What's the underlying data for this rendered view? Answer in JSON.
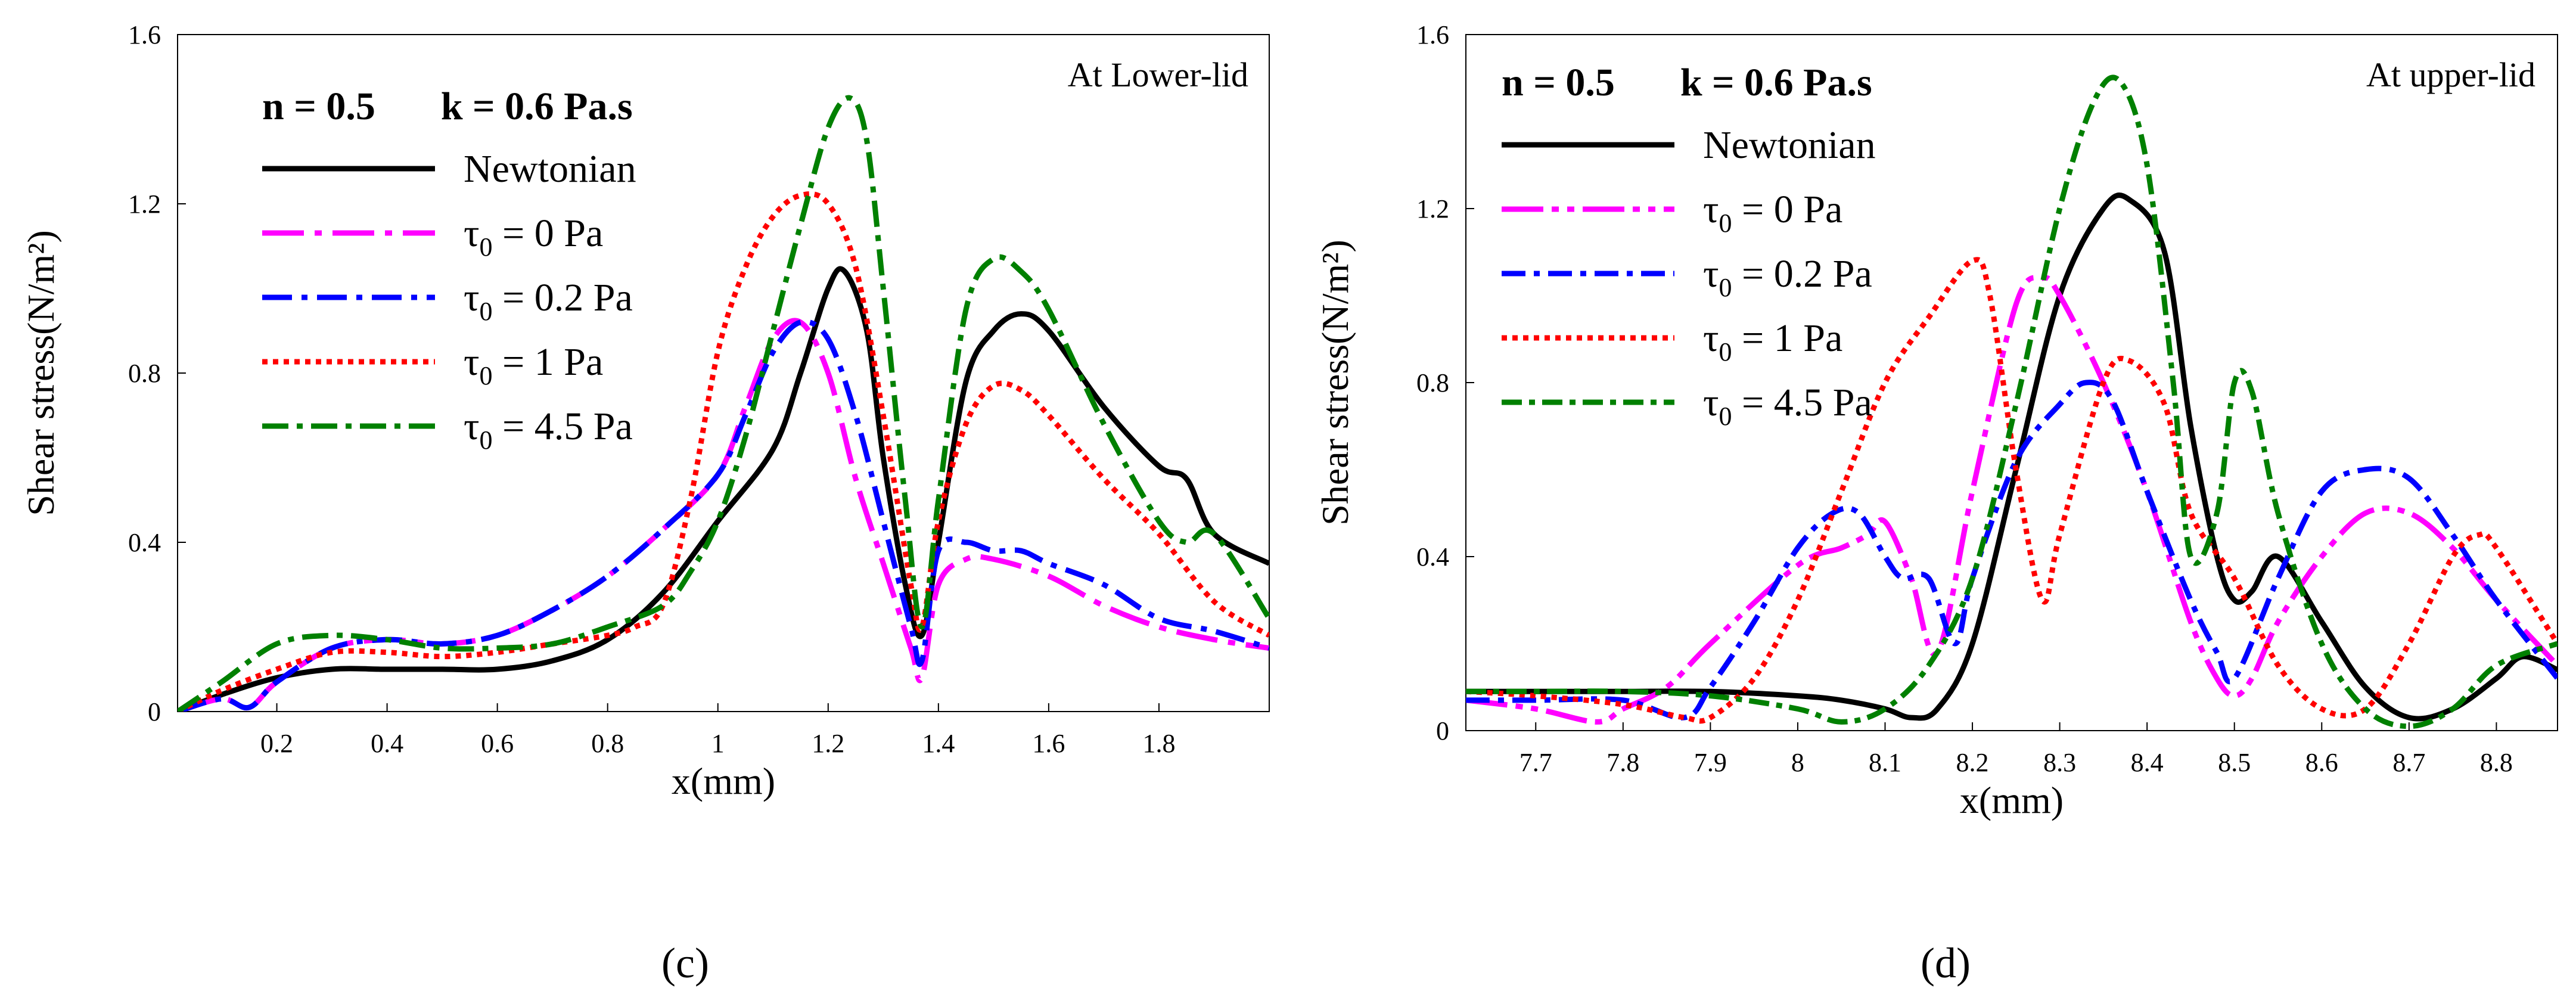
{
  "chart_data": [
    {
      "type": "line",
      "panel_label": "(c)",
      "annotation": "At Lower-lid",
      "params": {
        "n": "n = 0.5",
        "k": "k = 0.6 Pa.s"
      },
      "xlabel": "x(mm)",
      "ylabel": "Shear stress(N/m²)",
      "xlim": [
        0.02,
        2.0
      ],
      "ylim": [
        0,
        1.6
      ],
      "xticks": [
        0.2,
        0.4,
        0.6,
        0.8,
        1,
        1.2,
        1.4,
        1.6,
        1.8
      ],
      "xtick_labels": [
        "0.2",
        "0.4",
        "0.6",
        "0.8",
        "1",
        "1.2",
        "1.4",
        "1.6",
        "1.8"
      ],
      "yticks": [
        0,
        0.4,
        0.8,
        1.2,
        1.6
      ],
      "ytick_labels": [
        "0",
        "0.4",
        "0.8",
        "1.2",
        "1.6"
      ],
      "legend_position": "top-left",
      "series": [
        {
          "name": "Newtonian",
          "sub": "",
          "rest": "",
          "color": "#000000",
          "dash": "",
          "x": [
            0.02,
            0.1,
            0.2,
            0.3,
            0.4,
            0.5,
            0.6,
            0.7,
            0.8,
            0.9,
            1.0,
            1.1,
            1.15,
            1.2,
            1.23,
            1.27,
            1.3,
            1.34,
            1.37,
            1.4,
            1.45,
            1.5,
            1.55,
            1.6,
            1.7,
            1.8,
            1.85,
            1.9,
            2.0
          ],
          "y": [
            0.0,
            0.04,
            0.08,
            0.1,
            0.1,
            0.1,
            0.1,
            0.12,
            0.17,
            0.28,
            0.45,
            0.62,
            0.8,
            1.0,
            1.04,
            0.9,
            0.6,
            0.3,
            0.18,
            0.4,
            0.78,
            0.9,
            0.94,
            0.9,
            0.72,
            0.58,
            0.55,
            0.42,
            0.35
          ]
        },
        {
          "name": "τ",
          "sub": "0",
          "rest": " = 0 Pa",
          "color": "#ff00ff",
          "dash": "70,18,12,18",
          "x": [
            0.02,
            0.1,
            0.15,
            0.2,
            0.3,
            0.4,
            0.5,
            0.6,
            0.7,
            0.8,
            0.9,
            1.0,
            1.05,
            1.1,
            1.15,
            1.2,
            1.25,
            1.3,
            1.35,
            1.37,
            1.4,
            1.45,
            1.5,
            1.6,
            1.7,
            1.8,
            1.9,
            2.0
          ],
          "y": [
            0.0,
            0.03,
            0.01,
            0.07,
            0.15,
            0.17,
            0.16,
            0.18,
            0.24,
            0.32,
            0.43,
            0.56,
            0.72,
            0.88,
            0.92,
            0.8,
            0.55,
            0.35,
            0.15,
            0.08,
            0.3,
            0.36,
            0.36,
            0.32,
            0.25,
            0.2,
            0.17,
            0.15
          ]
        },
        {
          "name": "τ",
          "sub": "0",
          "rest": " = 0.2 Pa",
          "color": "#0000ff",
          "dash": "50,16,10,16",
          "x": [
            0.02,
            0.1,
            0.15,
            0.2,
            0.3,
            0.4,
            0.5,
            0.6,
            0.7,
            0.8,
            0.9,
            1.0,
            1.05,
            1.1,
            1.15,
            1.2,
            1.25,
            1.3,
            1.35,
            1.37,
            1.4,
            1.45,
            1.5,
            1.55,
            1.6,
            1.7,
            1.8,
            1.9,
            2.0
          ],
          "y": [
            0.0,
            0.03,
            0.01,
            0.07,
            0.15,
            0.17,
            0.16,
            0.18,
            0.24,
            0.32,
            0.43,
            0.56,
            0.7,
            0.85,
            0.92,
            0.88,
            0.7,
            0.45,
            0.2,
            0.12,
            0.38,
            0.4,
            0.38,
            0.38,
            0.35,
            0.3,
            0.22,
            0.19,
            0.15
          ]
        },
        {
          "name": "τ",
          "sub": "0",
          "rest": " = 1 Pa",
          "color": "#ff0000",
          "dash": "9,9",
          "x": [
            0.02,
            0.1,
            0.2,
            0.3,
            0.4,
            0.5,
            0.6,
            0.7,
            0.8,
            0.85,
            0.9,
            0.95,
            1.0,
            1.05,
            1.1,
            1.15,
            1.2,
            1.25,
            1.3,
            1.35,
            1.37,
            1.4,
            1.45,
            1.5,
            1.55,
            1.6,
            1.7,
            1.8,
            1.9,
            2.0
          ],
          "y": [
            0.0,
            0.05,
            0.1,
            0.14,
            0.14,
            0.13,
            0.14,
            0.16,
            0.18,
            0.2,
            0.25,
            0.5,
            0.85,
            1.05,
            1.17,
            1.22,
            1.2,
            1.05,
            0.7,
            0.3,
            0.2,
            0.45,
            0.68,
            0.77,
            0.76,
            0.7,
            0.55,
            0.42,
            0.26,
            0.18
          ]
        },
        {
          "name": "τ",
          "sub": "0",
          "rest": " = 4.5 Pa",
          "color": "#008000",
          "dash": "44,14,10,14",
          "x": [
            0.02,
            0.1,
            0.2,
            0.3,
            0.4,
            0.5,
            0.6,
            0.7,
            0.8,
            0.9,
            0.95,
            1.0,
            1.05,
            1.1,
            1.15,
            1.2,
            1.24,
            1.27,
            1.3,
            1.34,
            1.37,
            1.4,
            1.45,
            1.5,
            1.55,
            1.6,
            1.7,
            1.8,
            1.85,
            1.9,
            2.0
          ],
          "y": [
            0.0,
            0.07,
            0.16,
            0.18,
            0.17,
            0.15,
            0.15,
            0.16,
            0.2,
            0.25,
            0.33,
            0.45,
            0.65,
            0.9,
            1.15,
            1.38,
            1.45,
            1.35,
            1.0,
            0.5,
            0.2,
            0.5,
            0.95,
            1.07,
            1.04,
            0.95,
            0.68,
            0.45,
            0.4,
            0.42,
            0.22
          ]
        }
      ]
    },
    {
      "type": "line",
      "panel_label": "(d)",
      "annotation": "At upper-lid",
      "params": {
        "n": "n = 0.5",
        "k": "k = 0.6 Pa.s"
      },
      "xlabel": "x(mm)",
      "ylabel": "Shear stress(N/m²)",
      "xlim": [
        7.62,
        8.87
      ],
      "ylim": [
        0,
        1.6
      ],
      "xticks": [
        7.7,
        7.8,
        7.9,
        8,
        8.1,
        8.2,
        8.3,
        8.4,
        8.5,
        8.6,
        8.7,
        8.8
      ],
      "xtick_labels": [
        "7.7",
        "7.8",
        "7.9",
        "8",
        "8.1",
        "8.2",
        "8.3",
        "8.4",
        "8.5",
        "8.6",
        "8.7",
        "8.8"
      ],
      "yticks": [
        0,
        0.4,
        0.8,
        1.2,
        1.6
      ],
      "ytick_labels": [
        "0",
        "0.4",
        "0.8",
        "1.2",
        "1.6"
      ],
      "legend_position": "top-left",
      "series": [
        {
          "name": "Newtonian",
          "sub": "",
          "rest": "",
          "color": "#000000",
          "dash": "",
          "x": [
            7.62,
            7.7,
            7.8,
            7.9,
            8.0,
            8.05,
            8.1,
            8.13,
            8.16,
            8.2,
            8.25,
            8.3,
            8.35,
            8.38,
            8.42,
            8.45,
            8.48,
            8.5,
            8.52,
            8.55,
            8.6,
            8.65,
            8.7,
            8.75,
            8.8,
            8.83,
            8.87
          ],
          "y": [
            0.09,
            0.09,
            0.09,
            0.09,
            0.08,
            0.07,
            0.05,
            0.03,
            0.05,
            0.2,
            0.6,
            1.0,
            1.2,
            1.22,
            1.1,
            0.7,
            0.4,
            0.3,
            0.32,
            0.4,
            0.25,
            0.1,
            0.03,
            0.05,
            0.12,
            0.17,
            0.14
          ]
        },
        {
          "name": "τ",
          "sub": "0",
          "rest": " = 0 Pa",
          "color": "#ff00ff",
          "dash": "70,14,12,14,12,14",
          "x": [
            7.62,
            7.7,
            7.77,
            7.8,
            7.85,
            7.9,
            8.0,
            8.05,
            8.08,
            8.1,
            8.13,
            8.16,
            8.2,
            8.25,
            8.28,
            8.3,
            8.35,
            8.4,
            8.45,
            8.48,
            8.5,
            8.52,
            8.55,
            8.6,
            8.65,
            8.7,
            8.75,
            8.8,
            8.87
          ],
          "y": [
            0.07,
            0.05,
            0.02,
            0.05,
            0.1,
            0.2,
            0.38,
            0.42,
            0.45,
            0.48,
            0.35,
            0.18,
            0.55,
            0.98,
            1.04,
            1.0,
            0.8,
            0.55,
            0.25,
            0.12,
            0.08,
            0.12,
            0.25,
            0.4,
            0.5,
            0.5,
            0.42,
            0.3,
            0.15
          ]
        },
        {
          "name": "τ",
          "sub": "0",
          "rest": " = 0.2 Pa",
          "color": "#0000ff",
          "dash": "40,14,10,14",
          "x": [
            7.62,
            7.7,
            7.8,
            7.87,
            7.9,
            7.95,
            8.0,
            8.04,
            8.07,
            8.1,
            8.12,
            8.15,
            8.18,
            8.2,
            8.25,
            8.3,
            8.33,
            8.36,
            8.4,
            8.45,
            8.48,
            8.5,
            8.55,
            8.6,
            8.65,
            8.7,
            8.75,
            8.8,
            8.87
          ],
          "y": [
            0.07,
            0.07,
            0.07,
            0.03,
            0.1,
            0.25,
            0.42,
            0.5,
            0.5,
            0.4,
            0.35,
            0.35,
            0.2,
            0.35,
            0.62,
            0.75,
            0.8,
            0.76,
            0.55,
            0.3,
            0.18,
            0.12,
            0.35,
            0.55,
            0.6,
            0.58,
            0.45,
            0.3,
            0.12
          ]
        },
        {
          "name": "τ",
          "sub": "0",
          "rest": " = 1 Pa",
          "color": "#ff0000",
          "dash": "9,9",
          "x": [
            7.62,
            7.7,
            7.8,
            7.87,
            7.9,
            7.95,
            8.0,
            8.05,
            8.1,
            8.15,
            8.2,
            8.22,
            8.25,
            8.28,
            8.3,
            8.35,
            8.38,
            8.42,
            8.45,
            8.5,
            8.55,
            8.6,
            8.65,
            8.7,
            8.75,
            8.78,
            8.8,
            8.87
          ],
          "y": [
            0.09,
            0.08,
            0.06,
            0.03,
            0.03,
            0.12,
            0.3,
            0.55,
            0.8,
            0.95,
            1.08,
            1.0,
            0.6,
            0.3,
            0.45,
            0.8,
            0.85,
            0.75,
            0.5,
            0.35,
            0.15,
            0.05,
            0.05,
            0.2,
            0.4,
            0.45,
            0.42,
            0.2
          ]
        },
        {
          "name": "τ",
          "sub": "0",
          "rest": " = 4.5 Pa",
          "color": "#008000",
          "dash": "34,12,10,12",
          "x": [
            7.62,
            7.7,
            7.8,
            7.9,
            8.0,
            8.05,
            8.1,
            8.15,
            8.2,
            8.25,
            8.3,
            8.34,
            8.37,
            8.4,
            8.43,
            8.45,
            8.48,
            8.5,
            8.52,
            8.55,
            8.6,
            8.65,
            8.7,
            8.75,
            8.8,
            8.87
          ],
          "y": [
            0.09,
            0.09,
            0.09,
            0.08,
            0.05,
            0.02,
            0.05,
            0.15,
            0.35,
            0.75,
            1.2,
            1.45,
            1.49,
            1.3,
            0.8,
            0.4,
            0.5,
            0.8,
            0.78,
            0.5,
            0.2,
            0.05,
            0.01,
            0.05,
            0.15,
            0.2
          ]
        }
      ]
    }
  ]
}
